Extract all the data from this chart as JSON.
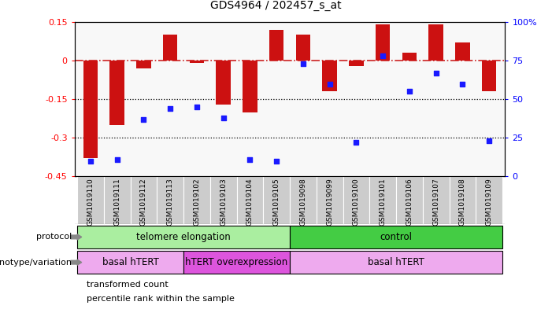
{
  "title": "GDS4964 / 202457_s_at",
  "samples": [
    "GSM1019110",
    "GSM1019111",
    "GSM1019112",
    "GSM1019113",
    "GSM1019102",
    "GSM1019103",
    "GSM1019104",
    "GSM1019105",
    "GSM1019098",
    "GSM1019099",
    "GSM1019100",
    "GSM1019101",
    "GSM1019106",
    "GSM1019107",
    "GSM1019108",
    "GSM1019109"
  ],
  "bar_values": [
    -0.38,
    -0.25,
    -0.03,
    0.1,
    -0.01,
    -0.17,
    -0.2,
    0.12,
    0.1,
    -0.12,
    -0.02,
    0.14,
    0.03,
    0.14,
    0.07,
    -0.12
  ],
  "scatter_values": [
    10,
    11,
    37,
    44,
    45,
    38,
    11,
    10,
    73,
    60,
    22,
    78,
    55,
    67,
    60,
    23
  ],
  "bar_color": "#cc1111",
  "scatter_color": "#1a1aff",
  "hline_color": "#cc2222",
  "dotted_line_color": "#000000",
  "ylim_left": [
    -0.45,
    0.15
  ],
  "ylim_right": [
    0,
    100
  ],
  "yticks_left": [
    -0.45,
    -0.3,
    -0.15,
    0.0,
    0.15
  ],
  "ytick_labels_left": [
    "-0.45",
    "-0.3",
    "-0.15",
    "0",
    "0.15"
  ],
  "yticks_right": [
    0,
    25,
    50,
    75,
    100
  ],
  "ytick_labels_right": [
    "0",
    "25",
    "50",
    "75",
    "100%"
  ],
  "protocol_groups": [
    {
      "label": "telomere elongation",
      "start": 0,
      "end": 8,
      "color": "#aaeea0"
    },
    {
      "label": "control",
      "start": 8,
      "end": 16,
      "color": "#44cc44"
    }
  ],
  "genotype_groups": [
    {
      "label": "basal hTERT",
      "start": 0,
      "end": 4,
      "color": "#eeaaee"
    },
    {
      "label": "hTERT overexpression",
      "start": 4,
      "end": 8,
      "color": "#dd55dd"
    },
    {
      "label": "basal hTERT",
      "start": 8,
      "end": 16,
      "color": "#eeaaee"
    }
  ],
  "protocol_label": "protocol",
  "genotype_label": "genotype/variation",
  "legend_bar": "transformed count",
  "legend_scatter": "percentile rank within the sample",
  "axis_bg": "#f8f8f8",
  "row_label_bg": "#cccccc",
  "white": "#ffffff"
}
